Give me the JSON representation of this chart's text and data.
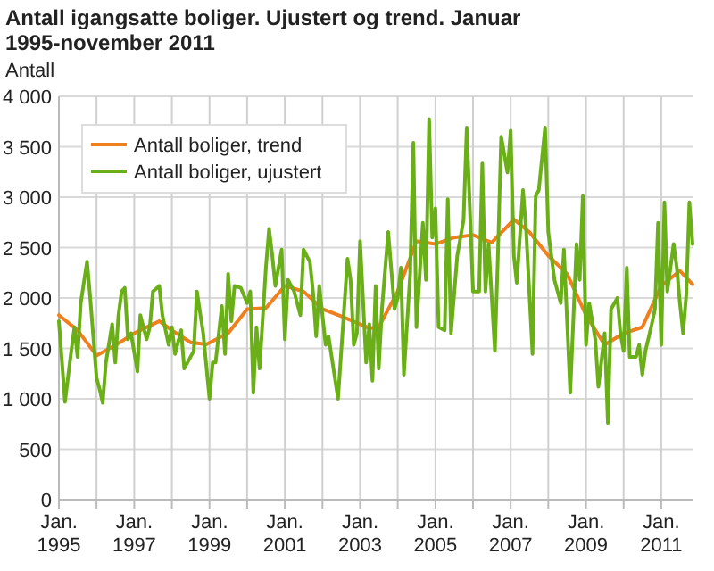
{
  "chart_data": {
    "type": "line",
    "title": "Antall igangsatte boliger. Ujustert og trend. Januar 1995-november 2011",
    "ylabel": "Antall",
    "xlim": [
      "1995-01",
      "2011-11"
    ],
    "ylim": [
      0,
      4000
    ],
    "yticks": [
      {
        "value": 0,
        "label": "0"
      },
      {
        "value": 500,
        "label": "500"
      },
      {
        "value": 1000,
        "label": "1 000"
      },
      {
        "value": 1500,
        "label": "1 500"
      },
      {
        "value": 2000,
        "label": "2 000"
      },
      {
        "value": 2500,
        "label": "2 500"
      },
      {
        "value": 3000,
        "label": "3 000"
      },
      {
        "value": 3500,
        "label": "3 500"
      },
      {
        "value": 4000,
        "label": "4 000"
      }
    ],
    "xticks": [
      {
        "value": "1995-01",
        "label": "Jan. 1995"
      },
      {
        "value": "1996-01",
        "label": null
      },
      {
        "value": "1997-01",
        "label": "Jan. 1997"
      },
      {
        "value": "1998-01",
        "label": null
      },
      {
        "value": "1999-01",
        "label": "Jan. 1999"
      },
      {
        "value": "2000-01",
        "label": null
      },
      {
        "value": "2001-01",
        "label": "Jan. 2001"
      },
      {
        "value": "2002-01",
        "label": null
      },
      {
        "value": "2003-01",
        "label": "Jan. 2003"
      },
      {
        "value": "2004-01",
        "label": null
      },
      {
        "value": "2005-01",
        "label": "Jan. 2005"
      },
      {
        "value": "2006-01",
        "label": null
      },
      {
        "value": "2007-01",
        "label": "Jan. 2007"
      },
      {
        "value": "2008-01",
        "label": null
      },
      {
        "value": "2009-01",
        "label": "Jan. 2009"
      },
      {
        "value": "2010-01",
        "label": null
      },
      {
        "value": "2011-01",
        "label": "Jan. 2011"
      }
    ],
    "grid": true,
    "legend": "top left",
    "marker": "none",
    "line_style": "solid",
    "series": [
      {
        "name": "Antall boliger, trend",
        "color": "#f07f1e",
        "x": [
          "1995-01",
          "1995-07",
          "1996-01",
          "1996-07",
          "1997-01",
          "1997-07",
          "1997-09",
          "1998-01",
          "1998-07",
          "1998-12",
          "1999-07",
          "2000-01",
          "2000-07",
          "2001-01",
          "2001-07",
          "2002-01",
          "2002-07",
          "2003-01",
          "2003-04",
          "2003-07",
          "2004-01",
          "2004-07",
          "2005-01",
          "2005-07",
          "2006-01",
          "2006-07",
          "2007-01",
          "2007-02",
          "2007-07",
          "2008-01",
          "2008-07",
          "2009-01",
          "2009-07",
          "2010-01",
          "2010-07",
          "2011-01",
          "2011-07",
          "2011-11"
        ],
        "values": [
          1830,
          1680,
          1430,
          1530,
          1650,
          1740,
          1770,
          1680,
          1560,
          1540,
          1650,
          1890,
          1900,
          2120,
          2065,
          1890,
          1820,
          1740,
          1700,
          1710,
          2065,
          2565,
          2535,
          2600,
          2625,
          2550,
          2745,
          2780,
          2655,
          2420,
          2240,
          1830,
          1535,
          1650,
          1710,
          2120,
          2270,
          2135
        ]
      },
      {
        "name": "Antall boliger, ujustert",
        "color": "#6aaf18",
        "x": [
          "1995-01",
          "1995-03",
          "1995-05",
          "1995-06",
          "1995-07",
          "1995-08",
          "1995-10",
          "1995-11",
          "1996-01",
          "1996-02",
          "1996-03",
          "1996-04",
          "1996-06",
          "1996-07",
          "1996-08",
          "1996-09",
          "1996-10",
          "1996-11",
          "1996-12",
          "1997-02",
          "1997-03",
          "1997-05",
          "1997-06",
          "1997-07",
          "1997-09",
          "1997-10",
          "1997-12",
          "1998-01",
          "1998-02",
          "1998-04",
          "1998-05",
          "1998-08",
          "1998-09",
          "1998-11",
          "1999-01",
          "1999-02",
          "1999-03",
          "1999-05",
          "1999-06",
          "1999-07",
          "1999-08",
          "1999-09",
          "1999-11",
          "2000-01",
          "2000-02",
          "2000-03",
          "2000-04",
          "2000-05",
          "2000-07",
          "2000-08",
          "2000-09",
          "2000-10",
          "2000-12",
          "2001-01",
          "2001-02",
          "2001-04",
          "2001-06",
          "2001-07",
          "2001-09",
          "2001-10",
          "2001-11",
          "2001-12",
          "2002-02",
          "2002-03",
          "2002-06",
          "2002-09",
          "2002-10",
          "2002-11",
          "2002-12",
          "2003-01",
          "2003-03",
          "2003-04",
          "2003-05",
          "2003-06",
          "2003-07",
          "2003-08",
          "2003-10",
          "2003-12",
          "2004-01",
          "2004-02",
          "2004-03",
          "2004-05",
          "2004-06",
          "2004-07",
          "2004-09",
          "2004-10",
          "2004-11",
          "2004-12",
          "2005-01",
          "2005-02",
          "2005-04",
          "2005-05",
          "2005-06",
          "2005-08",
          "2005-10",
          "2005-11",
          "2006-01",
          "2006-03",
          "2006-04",
          "2006-05",
          "2006-06",
          "2006-08",
          "2006-09",
          "2006-10",
          "2006-12",
          "2007-01",
          "2007-02",
          "2007-03",
          "2007-05",
          "2007-06",
          "2007-08",
          "2007-09",
          "2007-10",
          "2007-12",
          "2008-01",
          "2008-03",
          "2008-05",
          "2008-06",
          "2008-08",
          "2008-10",
          "2008-11",
          "2008-12",
          "2009-01",
          "2009-02",
          "2009-04",
          "2009-05",
          "2009-07",
          "2009-08",
          "2009-09",
          "2009-11",
          "2009-12",
          "2010-01",
          "2010-02",
          "2010-03",
          "2010-05",
          "2010-06",
          "2010-07",
          "2010-08",
          "2010-10",
          "2010-11",
          "2010-12",
          "2011-01",
          "2011-02",
          "2011-03",
          "2011-05",
          "2011-06",
          "2011-07",
          "2011-08",
          "2011-09",
          "2011-10",
          "2011-11"
        ],
        "values": [
          1770,
          970,
          1475,
          1710,
          1415,
          1950,
          2360,
          2000,
          1210,
          1090,
          960,
          1360,
          1740,
          1360,
          1830,
          2065,
          2100,
          1590,
          1650,
          1270,
          1830,
          1590,
          1710,
          2065,
          2120,
          1830,
          1535,
          1710,
          1445,
          1680,
          1300,
          1475,
          2065,
          1650,
          1000,
          1360,
          1360,
          1920,
          1445,
          2240,
          1770,
          2120,
          2100,
          1950,
          2065,
          1060,
          1710,
          1300,
          2300,
          2685,
          2420,
          2120,
          2480,
          1590,
          2180,
          2065,
          1830,
          2480,
          2360,
          2065,
          1620,
          2120,
          1535,
          1620,
          1000,
          2390,
          2180,
          1535,
          1650,
          2565,
          1360,
          1740,
          1180,
          2120,
          1300,
          1890,
          2655,
          1890,
          2000,
          2300,
          1240,
          2240,
          3540,
          1710,
          2745,
          2180,
          3775,
          2600,
          2890,
          1710,
          1680,
          2980,
          1650,
          2420,
          2775,
          3690,
          2065,
          2065,
          3335,
          2065,
          2535,
          1475,
          2480,
          3600,
          3245,
          3660,
          2420,
          2150,
          3070,
          2655,
          1445,
          3010,
          3070,
          3690,
          2655,
          2180,
          1950,
          2480,
          1060,
          2535,
          2180,
          3010,
          1535,
          1950,
          1590,
          1120,
          1650,
          760,
          1890,
          2000,
          1650,
          1475,
          2300,
          1415,
          1415,
          1535,
          1240,
          1475,
          1740,
          1890,
          2745,
          1535,
          2950,
          2065,
          2535,
          2300,
          1950,
          1650,
          2035,
          2950,
          2535
        ]
      }
    ]
  }
}
